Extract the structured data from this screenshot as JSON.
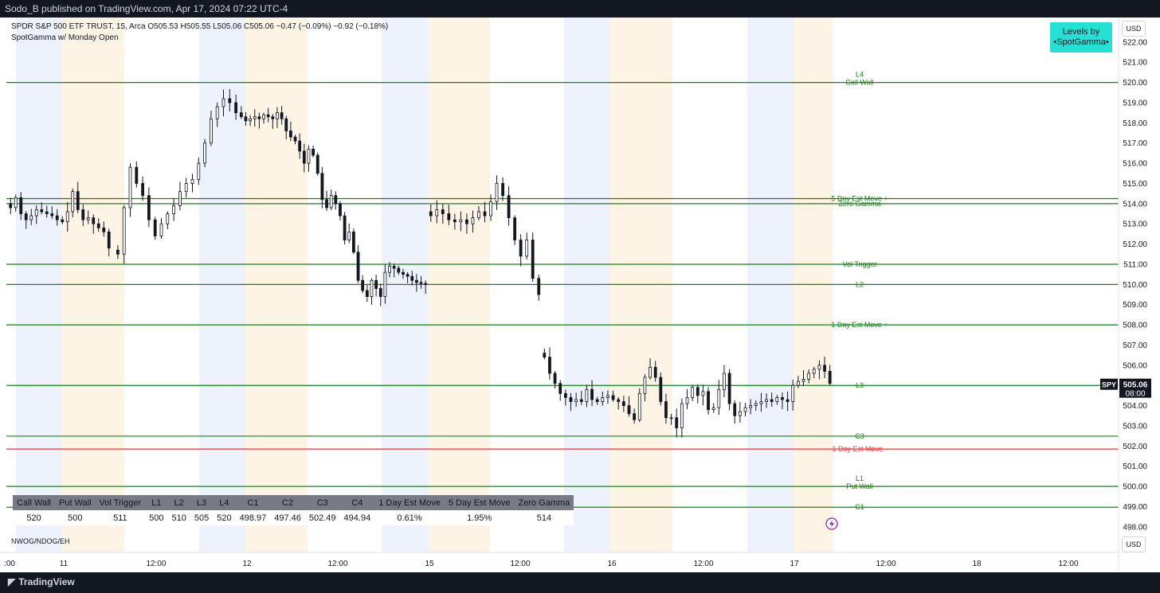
{
  "header": {
    "publish_text": "Sodo_B published on TradingView.com, Apr 17, 2024 07:22 UTC-4"
  },
  "legend": {
    "symbol_line": "SPDR S&P 500 ETF TRUST, 15, Arca",
    "ohlc": "O505.53  H505.55  L505.06  C505.06  −0.47 (−0.09%)  −0.92 (−0.18%)",
    "indicator": "SpotGamma w/ Monday Open"
  },
  "badge": {
    "line1": "Levels by",
    "line2": "•SpotGamma•"
  },
  "currency_top": "USD",
  "currency_bottom": "USD",
  "indicator_bottom": "NWOG/NDOG/EH",
  "footer": {
    "brand": "TradingView"
  },
  "colors": {
    "level_green": "#1a7f1a",
    "level_red": "#e53935",
    "session_blue": "#eef2fd",
    "session_orange": "#fef4e6",
    "candle": "#131722",
    "badge_bg": "#26e0d4"
  },
  "table": {
    "headers": [
      "Call Wall",
      "Put Wall",
      "Vol Trigger",
      "L1",
      "L2",
      "L3",
      "L4",
      "C1",
      "C2",
      "C3",
      "C4",
      "1 Day Est Move",
      "5 Day Est Move",
      "Zero Gamma"
    ],
    "values": [
      "520",
      "500",
      "511",
      "500",
      "510",
      "505",
      "520",
      "498.97",
      "497.46",
      "502.49",
      "494.94",
      "0.61%",
      "1.95%",
      "514"
    ]
  },
  "chart_data": {
    "type": "candlestick",
    "title": "",
    "symbol_tag": "SPY",
    "last_price": "505.06",
    "countdown": "08:00",
    "ylim": [
      497.6,
      522.9
    ],
    "y_ticks": [
      "522.00",
      "521.00",
      "520.00",
      "519.00",
      "518.00",
      "517.00",
      "516.00",
      "515.00",
      "514.00",
      "513.00",
      "512.00",
      "511.00",
      "510.00",
      "509.00",
      "508.00",
      "507.00",
      "506.00",
      "505.00",
      "504.00",
      "503.00",
      "502.00",
      "501.00",
      "500.00",
      "499.00",
      "498.00"
    ],
    "x_ticks": [
      ":00",
      "11",
      "12:00",
      "12",
      "12:00",
      "15",
      "12:00",
      "16",
      "12:00",
      "17",
      "12:00",
      "18",
      "12:00"
    ],
    "levels": [
      {
        "name": "Call Wall",
        "tag": "L4",
        "price": 520.0,
        "color": "green"
      },
      {
        "name": "5 Day Est Move +",
        "price": 514.25,
        "color": "green"
      },
      {
        "name": "Zero Gamma",
        "price": 514.0,
        "color": "green"
      },
      {
        "name": "Vol Trigger",
        "price": 511.0,
        "color": "green"
      },
      {
        "name": "L2",
        "price": 510.0,
        "color": "green"
      },
      {
        "name": "1 Day Est Move +",
        "price": 508.0,
        "color": "green"
      },
      {
        "name": "L3",
        "price": 505.0,
        "color": "green"
      },
      {
        "name": "C3",
        "price": 502.49,
        "color": "green"
      },
      {
        "name": "1 Day Est Move -",
        "price": 501.85,
        "color": "red"
      },
      {
        "name": "Put Wall",
        "tag": "L1",
        "price": 500.0,
        "color": "green"
      },
      {
        "name": "C1",
        "price": 498.97,
        "color": "green"
      }
    ],
    "price_path": [
      513.8,
      514.3,
      513.5,
      513.2,
      513.4,
      513.7,
      513.6,
      513.5,
      513.4,
      513.2,
      513.1,
      513.6,
      514.6,
      513.7,
      513.2,
      513.3,
      513.0,
      512.8,
      512.6,
      511.8,
      511.5,
      513.8,
      515.8,
      515.0,
      514.4,
      513.2,
      512.4,
      513.0,
      513.5,
      513.9,
      514.6,
      515.0,
      515.2,
      516.0,
      517.0,
      518.2,
      518.8,
      519.2,
      519.0,
      518.5,
      518.3,
      518.1,
      518.2,
      518.3,
      518.2,
      518.4,
      518.3,
      518.2,
      518.5,
      518.2,
      517.6,
      517.3,
      517.1,
      516.6,
      516.0,
      516.7,
      516.4,
      515.5,
      514.2,
      513.8,
      514.4,
      514.0,
      513.4,
      512.2,
      512.6,
      511.6,
      510.2,
      509.7,
      509.4,
      510.2,
      509.8,
      509.4,
      510.6,
      510.9,
      510.8,
      510.6,
      510.5,
      510.4,
      510.2,
      510.1,
      510.05,
      510.0,
      513.4,
      513.7,
      513.5,
      513.2,
      513.1,
      513.2,
      513.0,
      513.3,
      513.6,
      513.4,
      514.1,
      515.0,
      514.4,
      513.3,
      512.2,
      511.4,
      512.2,
      510.3,
      509.5,
      506.4,
      505.6,
      505.1,
      504.6,
      504.4,
      504.2,
      504.3,
      504.2,
      504.8,
      504.3,
      504.2,
      504.4,
      504.5,
      504.3,
      504.2,
      504.0,
      503.6,
      503.3,
      504.6,
      505.4,
      505.9,
      505.4,
      504.2,
      503.4,
      503.4,
      502.9,
      504.1,
      504.4,
      504.9,
      504.5,
      504.7,
      503.8,
      503.9,
      504.8,
      505.6,
      504.1,
      503.5,
      503.7,
      503.9,
      504.0,
      504.1,
      504.2,
      504.3,
      504.2,
      504.4,
      504.3,
      504.2,
      505.0,
      505.2,
      505.3,
      505.6,
      505.8,
      506.0,
      505.7,
      505.1
    ]
  }
}
